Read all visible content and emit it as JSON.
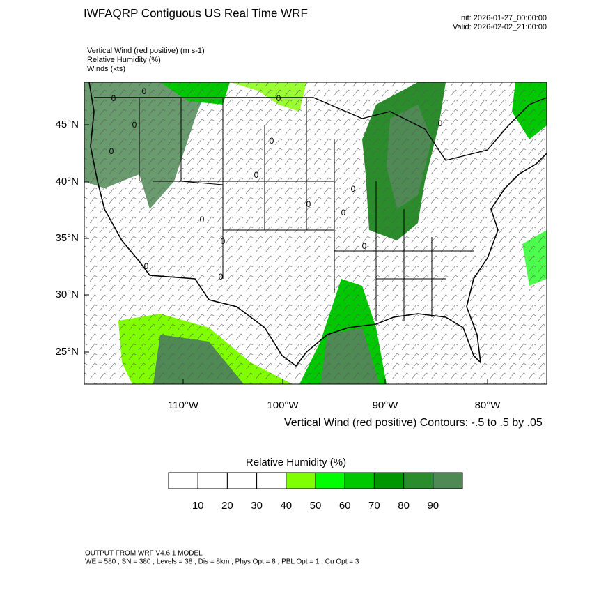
{
  "header": {
    "title": "IWFAQRP Contiguous US Real Time WRF",
    "init": "Init: 2026-01-27_00:00:00",
    "valid": "Valid: 2026-02-02_21:00:00"
  },
  "fields": [
    "Vertical Wind (red positive)   (m s-1)",
    "Relative Humidity   (%)",
    "Winds   (kts)"
  ],
  "map": {
    "lat_labels": [
      "45°N",
      "40°N",
      "35°N",
      "30°N",
      "25°N"
    ],
    "lon_labels": [
      "110°W",
      "100°W",
      "90°W",
      "80°W"
    ],
    "contour_note": "Vertical Wind (red positive) Contours: -.5 to .5 by .05",
    "contour_labels": [
      "0",
      "0",
      "0",
      "0",
      "0",
      "0",
      "0",
      "0",
      "0",
      "0",
      "0",
      "0",
      "0",
      "0",
      "0",
      "0"
    ]
  },
  "colorbar": {
    "title": "Relative Humidity  (%)",
    "colors": [
      "#ffffff",
      "#ffffff",
      "#ffffff",
      "#ffffff",
      "#80ff00",
      "#00ff00",
      "#00c800",
      "#009600",
      "#2a8c2a",
      "#4f8a55"
    ],
    "labels": [
      "10",
      "20",
      "30",
      "40",
      "50",
      "60",
      "70",
      "80",
      "90"
    ]
  },
  "footer": {
    "line1": "OUTPUT FROM WRF V4.6.1 MODEL",
    "line2": "WE = 580 ; SN = 380 ; Levels = 38 ; Dis = 8km ; Phys Opt = 8 ; PBL Opt = 1 ; Cu Opt = 3"
  }
}
